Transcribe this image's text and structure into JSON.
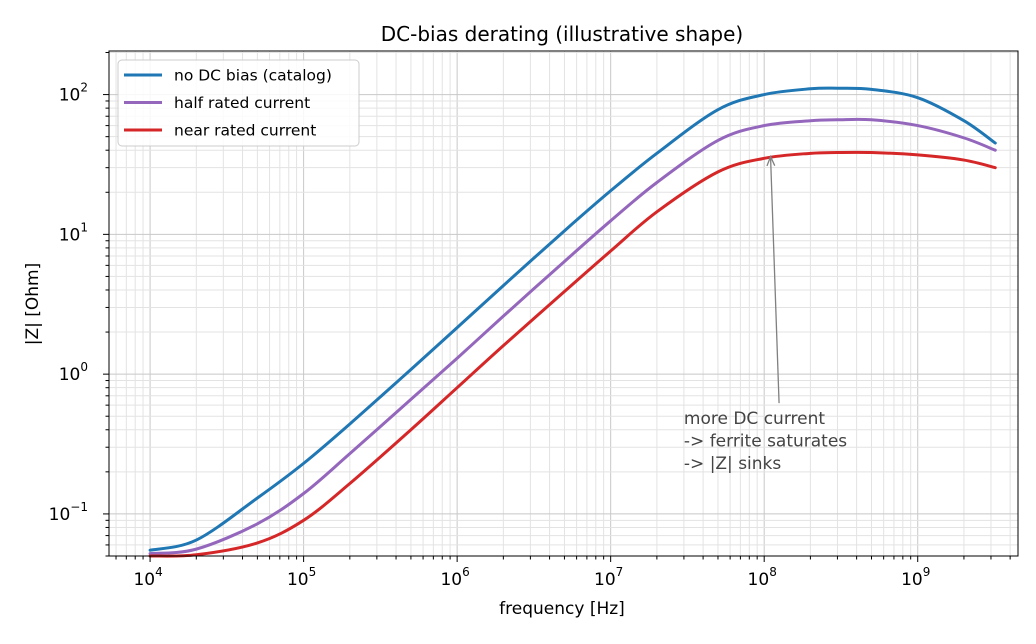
{
  "chart_data": {
    "type": "line",
    "title": "DC-bias derating (illustrative shape)",
    "xlabel": "frequency [Hz]",
    "ylabel": "|Z| [Ohm]",
    "xscale": "log",
    "yscale": "log",
    "xlim": [
      5400.0,
      4500000000.0
    ],
    "ylim": [
      0.05,
      205
    ],
    "grid": true,
    "legend_position": "upper-left",
    "x_ticks": [
      {
        "base": "10",
        "exp": "4",
        "value": 10000.0
      },
      {
        "base": "10",
        "exp": "5",
        "value": 100000.0
      },
      {
        "base": "10",
        "exp": "6",
        "value": 1000000.0
      },
      {
        "base": "10",
        "exp": "7",
        "value": 10000000.0
      },
      {
        "base": "10",
        "exp": "8",
        "value": 100000000.0
      },
      {
        "base": "10",
        "exp": "9",
        "value": 1000000000.0
      }
    ],
    "y_ticks": [
      {
        "base": "10",
        "exp": "−1",
        "value": 0.1
      },
      {
        "base": "10",
        "exp": "0",
        "value": 1
      },
      {
        "base": "10",
        "exp": "1",
        "value": 10
      },
      {
        "base": "10",
        "exp": "2",
        "value": 100
      }
    ],
    "x": [
      10000.0,
      20000.0,
      50000.0,
      100000.0,
      200000.0,
      500000.0,
      1000000.0,
      2000000.0,
      5000000.0,
      10000000.0,
      20000000.0,
      50000000.0,
      100000000.0,
      200000000.0,
      300000000.0,
      500000000.0,
      1000000000.0,
      2000000000.0,
      3200000000.0
    ],
    "series": [
      {
        "name": "no DC bias (catalog)",
        "color": "#1f77b4",
        "values": [
          0.055,
          0.065,
          0.13,
          0.23,
          0.44,
          1.08,
          2.15,
          4.3,
          10.6,
          20.5,
          38,
          78,
          100,
          110,
          111,
          109,
          95,
          65,
          45
        ]
      },
      {
        "name": "half rated current",
        "color": "#9467bd",
        "values": [
          0.052,
          0.056,
          0.085,
          0.14,
          0.27,
          0.66,
          1.3,
          2.6,
          6.4,
          12.5,
          23.5,
          47,
          60,
          65,
          66,
          66,
          60,
          49,
          40
        ]
      },
      {
        "name": "near rated current",
        "color": "#d62728",
        "values": [
          0.05,
          0.051,
          0.062,
          0.09,
          0.165,
          0.4,
          0.8,
          1.6,
          3.9,
          7.6,
          14.5,
          28,
          35,
          38,
          38.5,
          38.5,
          37,
          34,
          30
        ]
      }
    ],
    "annotation": {
      "lines": [
        "more DC current",
        "-> ferrite saturates",
        "-> |Z| sinks"
      ],
      "arrow_to": {
        "x": 110000000.0,
        "y": 36
      },
      "arrow_from": {
        "x": 125000000.0,
        "y": 0.62
      },
      "text_anchor": {
        "x": 30000000.0,
        "y": 0.45
      },
      "color": "#444444",
      "arrow_color": "#808080"
    }
  }
}
